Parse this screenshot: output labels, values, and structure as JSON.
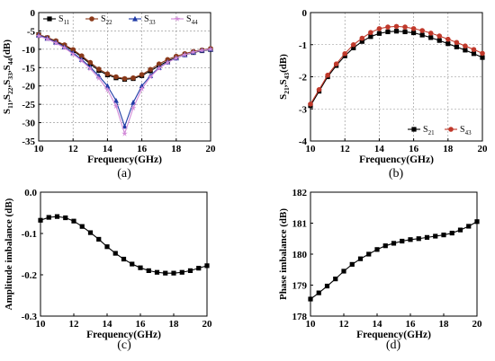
{
  "figure": {
    "panel_labels": [
      "(a)",
      "(b)",
      "(c)",
      "(d)"
    ]
  },
  "chart_data": [
    {
      "type": "line",
      "panel": "(a)",
      "xlabel": "Frequency(GHz)",
      "ylabel_parts": [
        "S",
        "11",
        ",S",
        "22",
        ",S",
        "33",
        ",S",
        "44",
        "(dB)"
      ],
      "xlim": [
        10,
        20
      ],
      "ylim": [
        -35,
        0
      ],
      "xticks": [
        10,
        12,
        14,
        16,
        18,
        20
      ],
      "yticks": [
        0,
        -5,
        -10,
        -15,
        -20,
        -25,
        -30,
        -35
      ],
      "grid": true,
      "legend_position": "top",
      "x": [
        10,
        10.5,
        11,
        11.5,
        12,
        12.5,
        13,
        13.5,
        14,
        14.5,
        15,
        15.5,
        16,
        16.5,
        17,
        17.5,
        18,
        18.5,
        19,
        19.5,
        20
      ],
      "series": [
        {
          "name": "S11",
          "name_main": "S",
          "name_sub": "11",
          "color": "#000000",
          "marker": "square",
          "values": [
            -6.0,
            -6.9,
            -7.9,
            -9.0,
            -10.4,
            -12.1,
            -14.0,
            -15.8,
            -17.0,
            -17.8,
            -18.2,
            -18.0,
            -17.2,
            -15.9,
            -14.5,
            -13.2,
            -12.3,
            -11.5,
            -10.9,
            -10.4,
            -10.1
          ]
        },
        {
          "name": "S22",
          "name_main": "S",
          "name_sub": "22",
          "color": "#8b3a1a",
          "marker": "circle",
          "values": [
            -6.0,
            -6.8,
            -7.7,
            -8.8,
            -10.1,
            -11.8,
            -13.6,
            -15.4,
            -16.7,
            -17.5,
            -18.0,
            -17.8,
            -16.9,
            -15.5,
            -14.0,
            -12.8,
            -11.9,
            -11.2,
            -10.6,
            -10.2,
            -9.8
          ]
        },
        {
          "name": "S33",
          "name_main": "S",
          "name_sub": "33",
          "color": "#1f3aa6",
          "marker": "triangle",
          "values": [
            -6.2,
            -7.0,
            -8.1,
            -9.4,
            -11.0,
            -12.8,
            -14.9,
            -17.3,
            -20.0,
            -24.0,
            -31.0,
            -24.5,
            -20.0,
            -17.2,
            -15.0,
            -13.5,
            -12.4,
            -11.5,
            -10.8,
            -10.3,
            -10.0
          ]
        },
        {
          "name": "S44",
          "name_main": "S",
          "name_sub": "44",
          "color": "#d28ad8",
          "marker": "star",
          "values": [
            -6.4,
            -7.2,
            -8.3,
            -9.6,
            -11.3,
            -13.1,
            -15.3,
            -17.9,
            -21.0,
            -25.5,
            -33.0,
            -26.0,
            -20.8,
            -17.5,
            -15.2,
            -13.6,
            -12.4,
            -11.5,
            -10.8,
            -10.3,
            -10.0
          ]
        }
      ]
    },
    {
      "type": "line",
      "panel": "(b)",
      "xlabel": "Frequency(GHz)",
      "ylabel_parts": [
        "S",
        "21",
        ",S",
        "43",
        "(dB)"
      ],
      "xlim": [
        10,
        20
      ],
      "ylim": [
        -4,
        0
      ],
      "xticks": [
        10,
        12,
        14,
        16,
        18,
        20
      ],
      "yticks": [
        0,
        -1,
        -2,
        -3,
        -4
      ],
      "grid": true,
      "legend_position": "bottom-right",
      "x": [
        10,
        10.5,
        11,
        11.5,
        12,
        12.5,
        13,
        13.5,
        14,
        14.5,
        15,
        15.5,
        16,
        16.5,
        17,
        17.5,
        18,
        18.5,
        19,
        19.5,
        20
      ],
      "series": [
        {
          "name": "S21",
          "name_main": "S",
          "name_sub": "21",
          "color": "#000000",
          "marker": "square",
          "values": [
            -2.9,
            -2.45,
            -2.0,
            -1.65,
            -1.35,
            -1.1,
            -0.9,
            -0.75,
            -0.65,
            -0.6,
            -0.58,
            -0.6,
            -0.63,
            -0.7,
            -0.78,
            -0.87,
            -0.97,
            -1.07,
            -1.17,
            -1.28,
            -1.4
          ]
        },
        {
          "name": "S43",
          "name_main": "S",
          "name_sub": "43",
          "color": "#c0392b",
          "marker": "circle",
          "values": [
            -2.85,
            -2.4,
            -1.95,
            -1.6,
            -1.28,
            -1.0,
            -0.8,
            -0.62,
            -0.5,
            -0.45,
            -0.43,
            -0.45,
            -0.5,
            -0.56,
            -0.64,
            -0.73,
            -0.83,
            -0.93,
            -1.04,
            -1.15,
            -1.27
          ]
        }
      ]
    },
    {
      "type": "line",
      "panel": "(c)",
      "xlabel": "Frequency(GHz)",
      "ylabel": "Amplitude imbalance (dB)",
      "xlim": [
        10,
        20
      ],
      "ylim": [
        -0.3,
        0.0
      ],
      "xticks": [
        10,
        12,
        14,
        16,
        18,
        20
      ],
      "yticks": [
        0.0,
        -0.1,
        -0.2,
        -0.3
      ],
      "ytick_labels": [
        "0.0",
        "-0.1",
        "-0.2",
        "-0.3"
      ],
      "grid": false,
      "x": [
        10,
        10.5,
        11,
        11.5,
        12,
        12.5,
        13,
        13.5,
        14,
        14.5,
        15,
        15.5,
        16,
        16.5,
        17,
        17.5,
        18,
        18.5,
        19,
        19.5,
        20
      ],
      "series": [
        {
          "color": "#000000",
          "marker": "square",
          "values": [
            -0.068,
            -0.061,
            -0.059,
            -0.062,
            -0.07,
            -0.083,
            -0.098,
            -0.114,
            -0.132,
            -0.148,
            -0.162,
            -0.174,
            -0.183,
            -0.19,
            -0.194,
            -0.196,
            -0.196,
            -0.194,
            -0.19,
            -0.184,
            -0.178
          ]
        }
      ]
    },
    {
      "type": "line",
      "panel": "(d)",
      "xlabel": "Frequency(GHz)",
      "ylabel": "Phase imbalance (dB)",
      "xlim": [
        10,
        20
      ],
      "ylim": [
        178,
        182
      ],
      "xticks": [
        10,
        12,
        14,
        16,
        18,
        20
      ],
      "yticks": [
        178,
        179,
        180,
        181,
        182
      ],
      "grid": false,
      "x": [
        10,
        10.5,
        11,
        11.5,
        12,
        12.5,
        13,
        13.5,
        14,
        14.5,
        15,
        15.5,
        16,
        16.5,
        17,
        17.5,
        18,
        18.5,
        19,
        19.5,
        20
      ],
      "series": [
        {
          "color": "#000000",
          "marker": "square",
          "values": [
            178.55,
            178.75,
            178.97,
            179.2,
            179.45,
            179.67,
            179.85,
            180.0,
            180.15,
            180.27,
            180.35,
            180.42,
            180.47,
            180.5,
            180.54,
            180.58,
            180.62,
            180.68,
            180.78,
            180.9,
            181.05
          ]
        }
      ]
    }
  ]
}
